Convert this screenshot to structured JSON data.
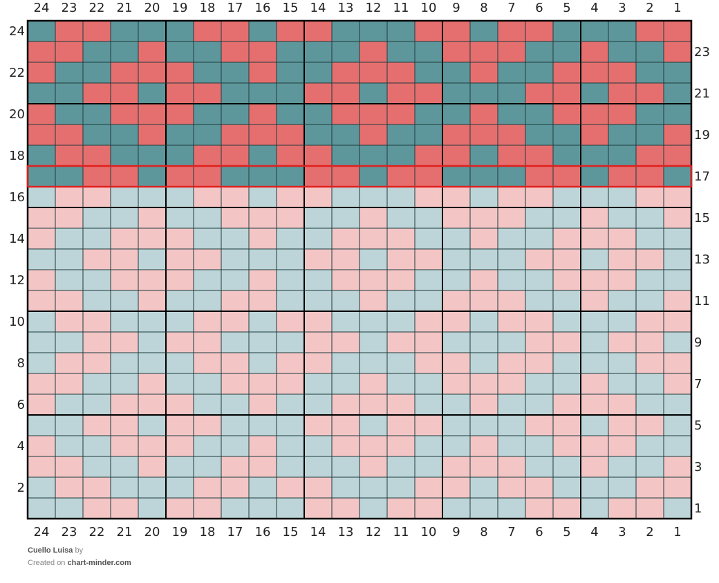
{
  "chart_title": "Cuello Luisa",
  "footer": {
    "title": "Cuello Luisa",
    "by_text": "by",
    "created_on_text": "Created on",
    "site": "chart-minder.com"
  },
  "colors": {
    "dark_teal": "#5e979b",
    "dark_red": "#e56f6e",
    "light_teal": "#bdd5d8",
    "light_pink": "#f4c5c5",
    "highlight": "#e0201f"
  },
  "chart_data": {
    "type": "heatmap",
    "stitches": 24,
    "rows": 24,
    "column_labels": [
      "24",
      "23",
      "22",
      "21",
      "20",
      "19",
      "18",
      "17",
      "16",
      "15",
      "14",
      "13",
      "12",
      "11",
      "10",
      "9",
      "8",
      "7",
      "6",
      "5",
      "4",
      "3",
      "2",
      "1"
    ],
    "highlighted_row": 17,
    "knitted_up_to_row": 17,
    "legend": {
      "T": "teal",
      "R": "red"
    },
    "grid_rows_top_to_bottom": [
      "TRRTTTRRTRRTTTRRTRRTTTRR",
      "RRTTRTTRRTTTRTTRRRTTRTTR",
      "RTTRRRTTRTTRRRTTRTTRRRTT",
      "TTRRTRRTTTRRTRRTTTRRTRRT",
      "RTTRRRTTRTTRRRTTRTTRRRTT",
      "RRTTRTTRRRTTRTTRRRTTRTTR",
      "TRRTTTRRTRRTTTRRTRRTTTRR",
      "TTRRTRRTTTRRTRRTTTRRTRRT",
      "TRRTTTRRTRRTTTRRTRRTTTRR",
      "RRTTRTTRRRTTRTTRRRTTRTTR",
      "RTTRRRTTRTTRRRTTRTTRRRTT",
      "TTRRTRRTTTRRTRRTTTRRTRRT",
      "RTTRRRTTRTTRRRTTRTTRRRTT",
      "RRTTRTTRRTTTRTTRRRTTRTTR",
      "TRRTTTRRTRRTTTRRTRRTTTRR",
      "TTRRTRRTTTRRTRRTTTRRTRRT",
      "TRRTTTRRTRRTTTRRTRRTTTRR",
      "RRTTRTTRRRTTRTTRRRTTRTTR",
      "RTTRRRTTRTTRRRTTRTTRRRTT",
      "TTRRTRRTTTRRTRRTTTRRTRRT",
      "RTTRRRTTRTTRRRTTRTTRRRTT",
      "RRTTRTTRRTTTRTTRRRTTRTTR",
      "TRRTTTRRTRRTTTRRTRRTTTRR",
      "TTRRTRRTTTRRTRRTTTRRTRRT"
    ]
  }
}
